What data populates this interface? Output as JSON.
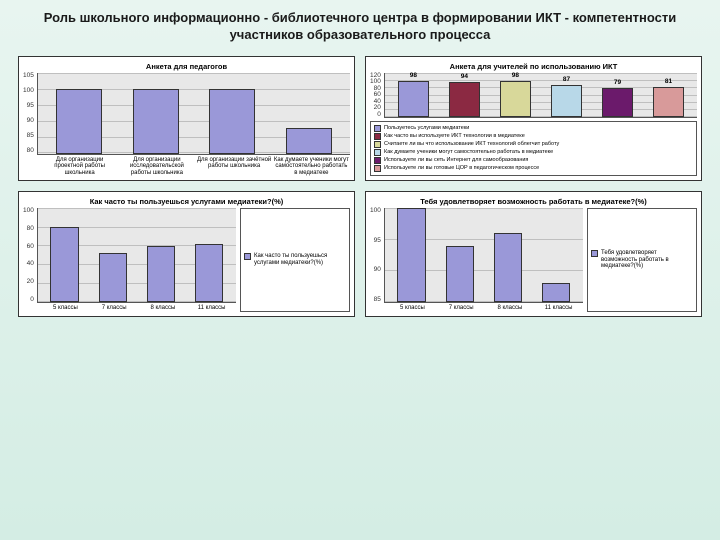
{
  "title": "Роль школьного информационно - библиотечного центра в формировании ИКТ - компетентности участников образовательного процесса",
  "chart1": {
    "type": "bar",
    "title": "Анкета для педагогов",
    "ylim": [
      80,
      105
    ],
    "yticks": [
      80,
      85,
      90,
      95,
      100,
      105
    ],
    "background_color": "#e8e8e8",
    "grid_color": "#bfbfbf",
    "bar_color": "#9a98d8",
    "categories": [
      "Для организации проектной работы школьника",
      "Для организации исследовательской работы школьника",
      "Для организации зачётной работы школьника",
      "Как думаете ученики могут самостоятельно работать в медиатеке"
    ],
    "values": [
      100,
      100,
      100,
      88
    ]
  },
  "chart2": {
    "type": "bar",
    "title": "Анкета для учителей по использованию ИКТ",
    "ylim": [
      0,
      120
    ],
    "yticks": [
      0,
      20,
      40,
      60,
      80,
      100,
      120
    ],
    "background_color": "#e8e8e8",
    "grid_color": "#bfbfbf",
    "values": [
      98,
      94,
      98,
      87,
      79,
      81
    ],
    "bar_colors": [
      "#9a98d8",
      "#8b2942",
      "#d8d89a",
      "#b8d8e8",
      "#6b1a6b",
      "#d89a9a"
    ],
    "legend": [
      "Пользуетесь услугами медиатеки",
      "Как часто вы используете ИКТ технологии в медиатеке",
      "Считаете ли вы что использование ИКТ технологий облегчит работу",
      "Как думаете ученики могут самостоятельно работать в медиатеке",
      "Используете ли вы сеть Интернет для самообразования",
      "Используете ли вы готовые ЦОР в педагогическом процессе"
    ]
  },
  "chart3": {
    "type": "bar",
    "title": "Как часто ты пользуешься услугами медиатеки?(%)",
    "ylim": [
      0,
      100
    ],
    "yticks": [
      0,
      20,
      40,
      60,
      80,
      100
    ],
    "background_color": "#e8e8e8",
    "grid_color": "#bfbfbf",
    "bar_color": "#9a98d8",
    "categories": [
      "5 классы",
      "7 классы",
      "8 классы",
      "11 классы"
    ],
    "values": [
      80,
      52,
      60,
      62
    ],
    "legend": [
      "Как часто ты пользуешься услугами медиатеки?(%)"
    ]
  },
  "chart4": {
    "type": "bar",
    "title": "Тебя удовлетворяет возможность работать в медиатеке?(%)",
    "ylim": [
      85,
      100
    ],
    "yticks": [
      85,
      90,
      95,
      100
    ],
    "background_color": "#e8e8e8",
    "grid_color": "#bfbfbf",
    "bar_color": "#9a98d8",
    "categories": [
      "5 классы",
      "7 классы",
      "8 классы",
      "11 классы"
    ],
    "values": [
      100,
      94,
      96,
      88
    ],
    "legend": [
      "Тебя удовлетворяет возможность работать в медиатеке?(%)"
    ]
  }
}
